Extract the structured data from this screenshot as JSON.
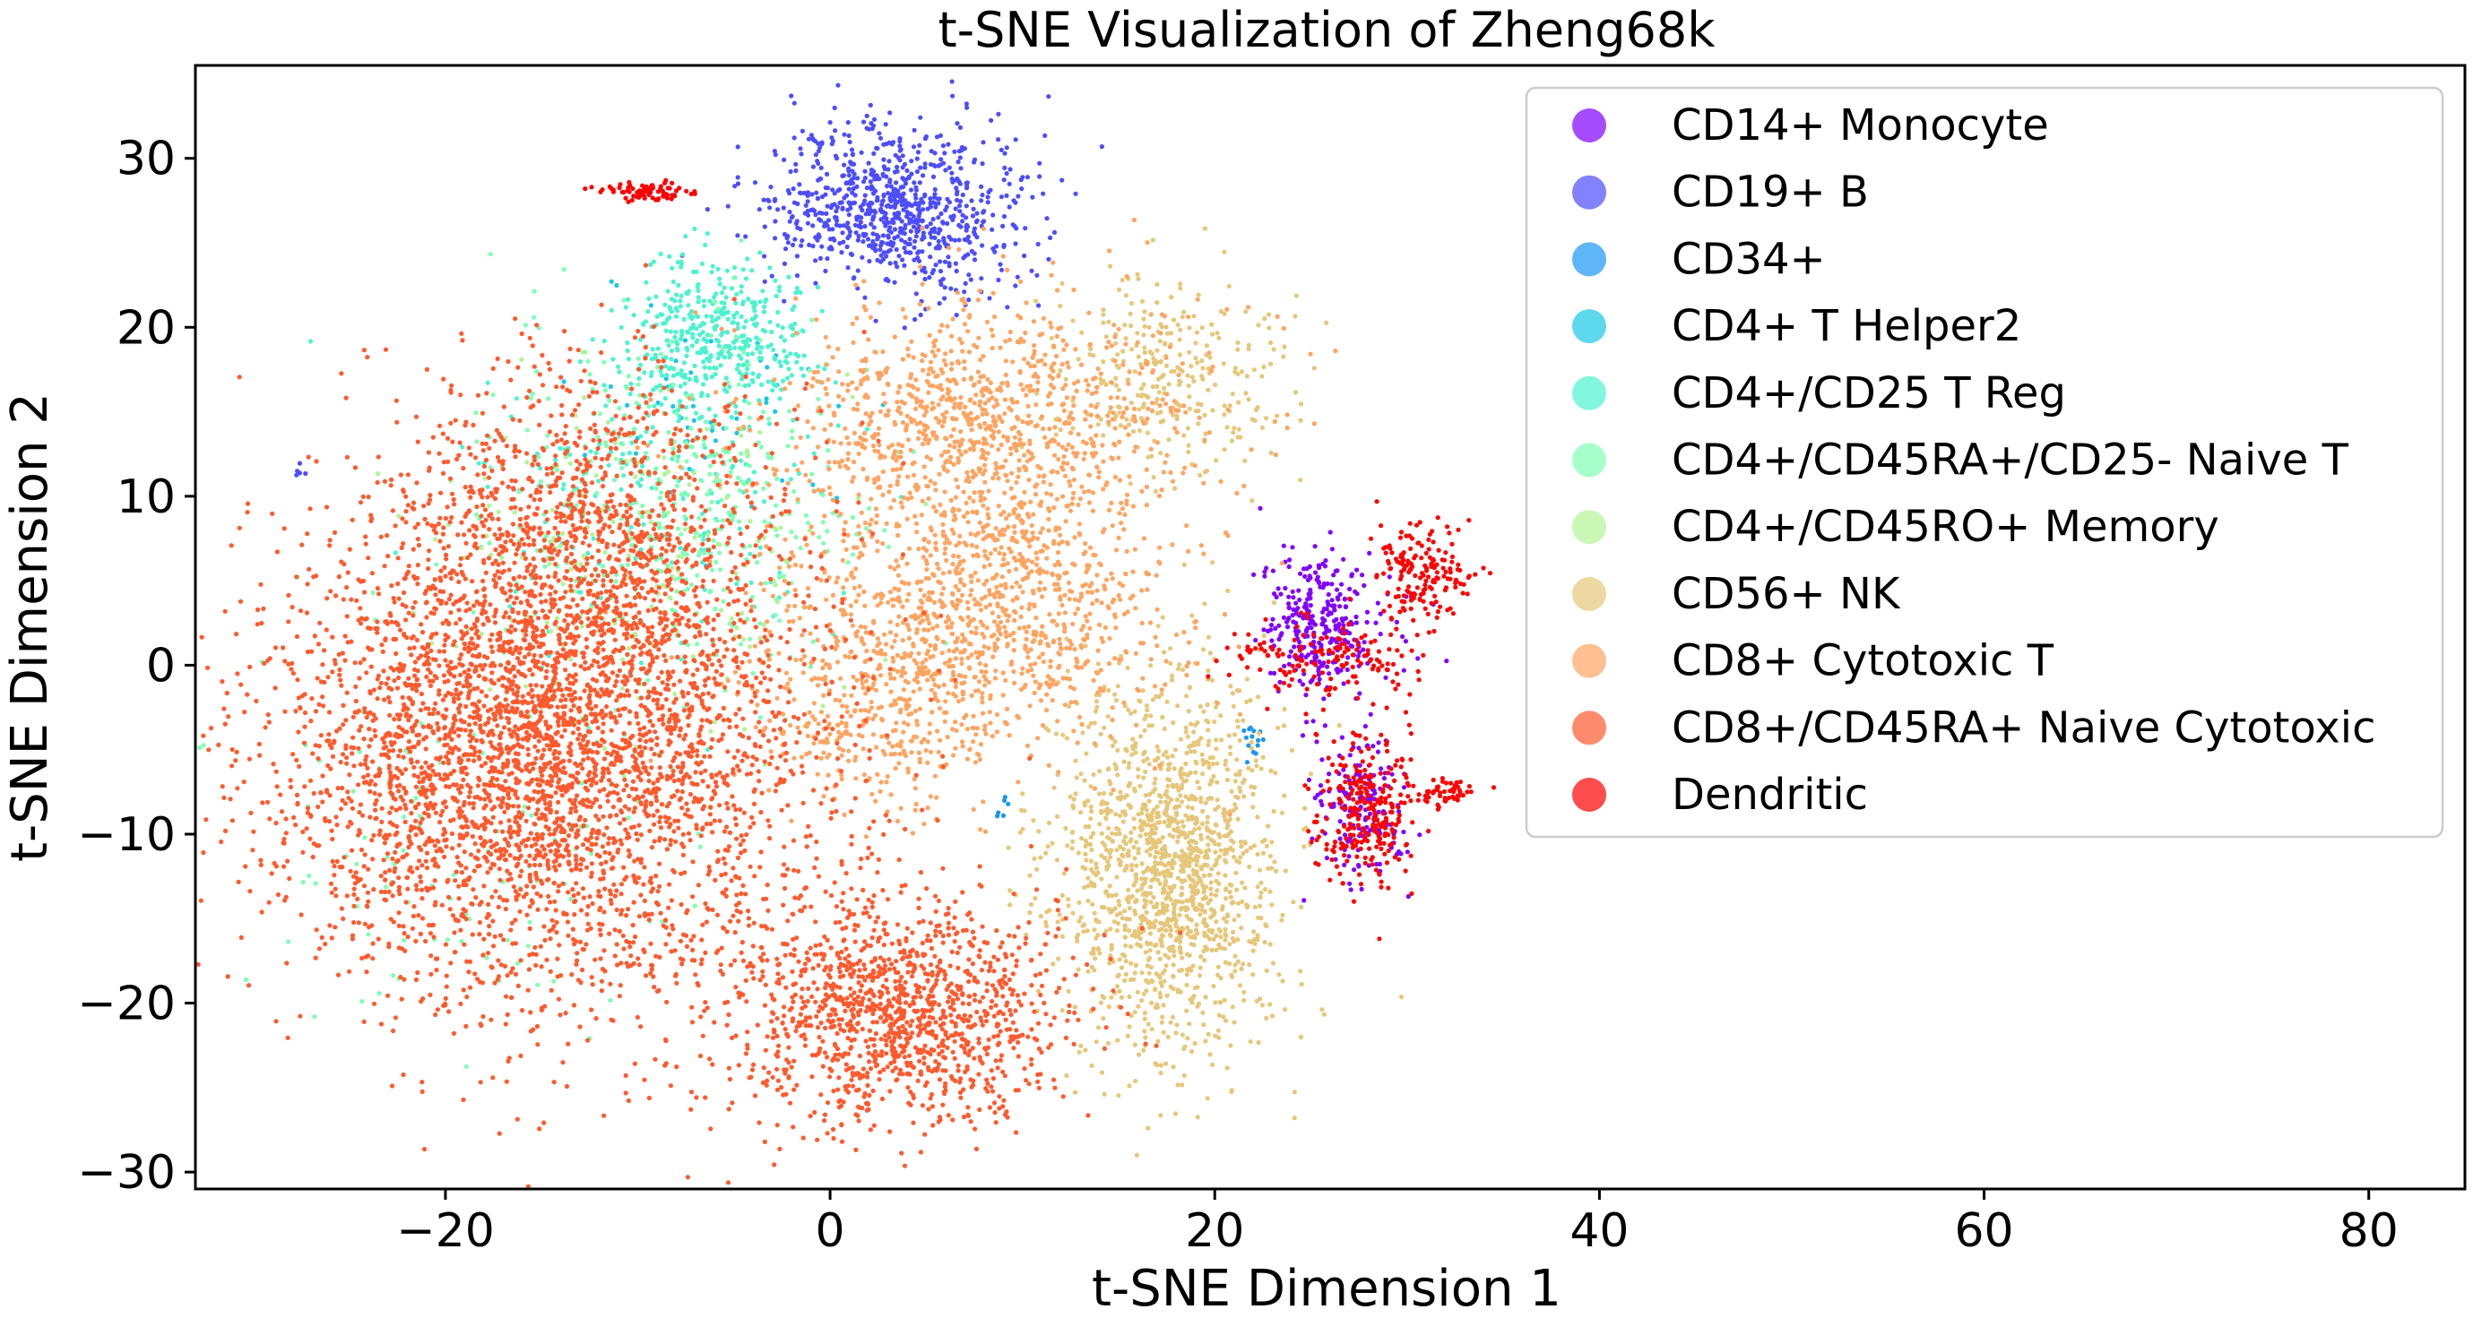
{
  "chart_data": {
    "type": "scatter",
    "title": "t-SNE Visualization of Zheng68k",
    "xlabel": "t-SNE Dimension 1",
    "ylabel": "t-SNE Dimension 2",
    "xlim": [
      -33,
      85
    ],
    "ylim": [
      -31,
      35.5
    ],
    "x_ticks": [
      -20,
      0,
      20,
      40,
      60,
      80
    ],
    "y_ticks": [
      -30,
      -20,
      -10,
      0,
      10,
      20,
      30
    ],
    "x_tick_labels": [
      "−20",
      "0",
      "20",
      "40",
      "60",
      "80"
    ],
    "y_tick_labels": [
      "−30",
      "−20",
      "−10",
      "0",
      "10",
      "20",
      "30"
    ],
    "grid": false,
    "legend_position": "upper-right",
    "series": [
      {
        "name": "CD14+ Monocyte",
        "color": "#8000ff",
        "clusters": [
          {
            "cx": 25.5,
            "cy": 2.5,
            "sx": 1.6,
            "sy": 2.2,
            "n": 300
          },
          {
            "cx": 27.5,
            "cy": -8.5,
            "sx": 1.2,
            "sy": 2.3,
            "n": 160
          }
        ]
      },
      {
        "name": "CD19+ B",
        "color": "#4d4dfc",
        "clusters": [
          {
            "cx": 3.5,
            "cy": 27.0,
            "sx": 3.4,
            "sy": 2.5,
            "n": 820
          },
          {
            "cx": -27.5,
            "cy": 11.5,
            "sx": 0.3,
            "sy": 0.3,
            "n": 6
          }
        ]
      },
      {
        "name": "CD34+",
        "color": "#1996f3",
        "clusters": [
          {
            "cx": 22.0,
            "cy": -4.5,
            "sx": 0.4,
            "sy": 0.5,
            "n": 14
          },
          {
            "cx": 9.0,
            "cy": -8.5,
            "sx": 0.2,
            "sy": 0.5,
            "n": 6
          }
        ]
      },
      {
        "name": "CD4+ T Helper2",
        "color": "#1ac7e6",
        "clusters": [
          {
            "cx": -6.0,
            "cy": 15.0,
            "sx": 3.5,
            "sy": 3.5,
            "n": 50
          }
        ]
      },
      {
        "name": "CD4+/CD25 T Reg",
        "color": "#4df3ce",
        "clusters": [
          {
            "cx": -6.0,
            "cy": 19.5,
            "sx": 2.3,
            "sy": 2.2,
            "n": 420
          },
          {
            "cx": -9.0,
            "cy": 10.0,
            "sx": 5.0,
            "sy": 4.5,
            "n": 200
          }
        ]
      },
      {
        "name": "CD4+/CD45RA+/CD25- Naive T",
        "color": "#80ffb4",
        "clusters": [
          {
            "cx": -8.0,
            "cy": 10.0,
            "sx": 5.0,
            "sy": 5.0,
            "n": 380
          },
          {
            "cx": -18.0,
            "cy": -10.0,
            "sx": 6.0,
            "sy": 6.0,
            "n": 120
          }
        ]
      },
      {
        "name": "CD4+/CD45RO+ Memory",
        "color": "#b3f396",
        "clusters": [
          {
            "cx": -10.0,
            "cy": 5.0,
            "sx": 5.0,
            "sy": 5.0,
            "n": 200
          }
        ]
      },
      {
        "name": "CD56+ NK",
        "color": "#e6c77a",
        "clusters": [
          {
            "cx": 17.5,
            "cy": -12.0,
            "sx": 2.8,
            "sy": 5.5,
            "n": 1500
          },
          {
            "cx": 17.5,
            "cy": 17.0,
            "sx": 3.0,
            "sy": 2.8,
            "n": 300
          }
        ]
      },
      {
        "name": "CD8+ Cytotoxic T",
        "color": "#ffa461",
        "clusters": [
          {
            "cx": 8.0,
            "cy": 14.0,
            "sx": 5.5,
            "sy": 4.0,
            "n": 1100
          },
          {
            "cx": 7.5,
            "cy": 3.0,
            "sx": 5.0,
            "sy": 4.0,
            "n": 1000
          },
          {
            "cx": 2.0,
            "cy": -3.0,
            "sx": 3.5,
            "sy": 3.0,
            "n": 300
          }
        ]
      },
      {
        "name": "CD8+/CD45RA+ Naive Cytotoxic",
        "color": "#ff5a2e",
        "clusters": [
          {
            "cx": -15.0,
            "cy": -5.0,
            "sx": 7.0,
            "sy": 7.5,
            "n": 4000
          },
          {
            "cx": 3.0,
            "cy": -20.5,
            "sx": 4.5,
            "sy": 3.5,
            "n": 1300
          },
          {
            "cx": -13.0,
            "cy": 8.0,
            "sx": 5.0,
            "sy": 5.0,
            "n": 900
          }
        ]
      },
      {
        "name": "Dendritic",
        "color": "#ff0000",
        "clusters": [
          {
            "cx": -9.5,
            "cy": 28.0,
            "sx": 1.1,
            "sy": 0.25,
            "n": 80
          },
          {
            "cx": 31.0,
            "cy": 5.5,
            "sx": 1.3,
            "sy": 1.4,
            "n": 170
          },
          {
            "cx": 26.0,
            "cy": 0.5,
            "sx": 2.6,
            "sy": 1.1,
            "n": 150
          },
          {
            "cx": 28.0,
            "cy": -8.5,
            "sx": 1.3,
            "sy": 2.4,
            "n": 280
          },
          {
            "cx": 32.0,
            "cy": -7.5,
            "sx": 0.8,
            "sy": 0.5,
            "n": 50
          }
        ]
      }
    ]
  }
}
